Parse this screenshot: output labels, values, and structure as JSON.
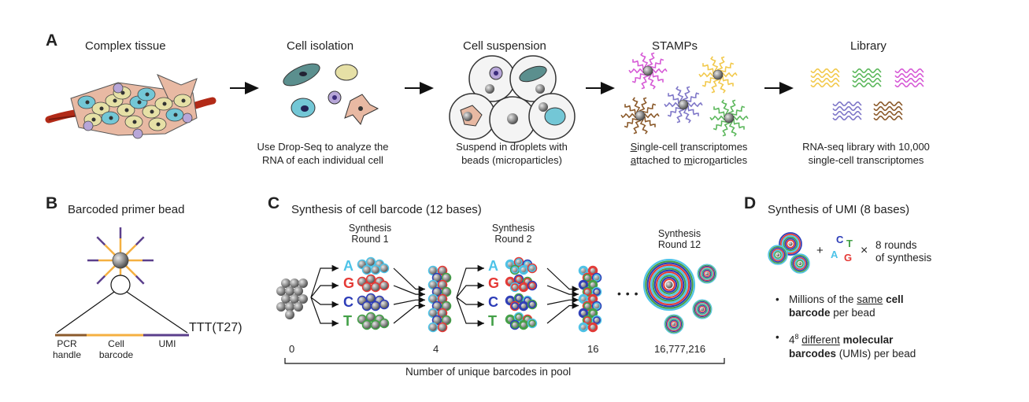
{
  "panelA": {
    "letter": "A",
    "stages": [
      {
        "title": "Complex tissue",
        "caption": []
      },
      {
        "title": "Cell isolation",
        "caption": [
          "Use Drop-Seq to analyze the",
          "RNA of each individual cell"
        ]
      },
      {
        "title": "Cell suspension",
        "caption": [
          "Suspend in droplets with",
          "beads (microparticles)"
        ]
      },
      {
        "title": "STAMPs",
        "caption": [
          "Single-cell transcriptomes",
          "attached to microparticles"
        ]
      },
      {
        "title": "Library",
        "caption": [
          "RNA-seq library with 10,000",
          "single-cell transcriptomes"
        ]
      }
    ]
  },
  "panelB": {
    "letter": "B",
    "title": "Barcoded primer bead",
    "tail_label": "TTT(T27)",
    "segments": [
      {
        "label": [
          "PCR",
          "handle"
        ],
        "color": "#8B5A2B"
      },
      {
        "label": [
          "Cell",
          "barcode"
        ],
        "color": "#F5B041"
      },
      {
        "label": [
          "UMI"
        ],
        "color": "#5B3F8C"
      }
    ]
  },
  "panelC": {
    "letter": "C",
    "title": "Synthesis of cell barcode (12 bases)",
    "rounds": [
      {
        "label": [
          "Synthesis",
          "Round 1"
        ]
      },
      {
        "label": [
          "Synthesis",
          "Round 2"
        ]
      },
      {
        "label": [
          "Synthesis",
          "Round 12"
        ]
      }
    ],
    "bases": [
      {
        "letter": "A",
        "color": "#4DC3E8"
      },
      {
        "letter": "G",
        "color": "#E53935"
      },
      {
        "letter": "C",
        "color": "#2D3DB8"
      },
      {
        "letter": "T",
        "color": "#43A047"
      }
    ],
    "ellipsis": "• • •",
    "counts": [
      "0",
      "4",
      "16",
      "16,777,216"
    ],
    "axis_label": "Number of unique barcodes in pool"
  },
  "panelD": {
    "letter": "D",
    "title": "Synthesis of UMI (8 bases)",
    "plus": "+",
    "times": "×",
    "rounds_text": [
      "8 rounds",
      "of synthesis"
    ],
    "bullet1": {
      "pre": "Millions of the ",
      "underlined": "same",
      "mid": " ",
      "bold1": "cell",
      "bold2": "barcode",
      "post": " per bead"
    },
    "bullet2": {
      "base": "4",
      "exp": "8",
      "underlined": "different",
      "bold1": "molecular",
      "bold2": "barcodes",
      "post": " (UMIs) per bead"
    }
  }
}
